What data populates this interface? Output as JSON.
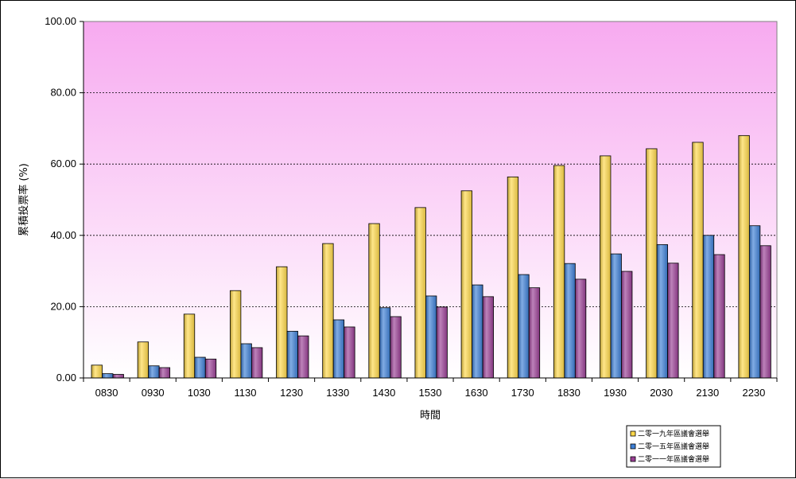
{
  "chart_data": {
    "type": "bar",
    "title": "",
    "xlabel": "時間",
    "ylabel": "累積投票率 (%)",
    "ylim": [
      0,
      100
    ],
    "yticks": [
      "0.00",
      "20.00",
      "40.00",
      "60.00",
      "80.00",
      "100.00"
    ],
    "grid": true,
    "legend_position": "bottom-right",
    "categories": [
      "0830",
      "0930",
      "1030",
      "1130",
      "1230",
      "1330",
      "1430",
      "1530",
      "1630",
      "1730",
      "1830",
      "1930",
      "2030",
      "2130",
      "2230"
    ],
    "series": [
      {
        "name": "二零一九年區議會選舉",
        "color": "#ffd84a",
        "values": [
          3.6,
          10.1,
          17.9,
          24.5,
          31.2,
          37.7,
          43.3,
          47.8,
          52.5,
          56.4,
          59.6,
          62.3,
          64.3,
          66.1,
          68.0
        ]
      },
      {
        "name": "二零一五年區議會選舉",
        "color": "#3d7fd6",
        "values": [
          1.2,
          3.4,
          5.8,
          9.6,
          13.1,
          16.3,
          19.7,
          23.0,
          26.1,
          29.0,
          32.1,
          34.8,
          37.4,
          40.0,
          42.7
        ]
      },
      {
        "name": "二零一一年區議會選舉",
        "color": "#9a3f95",
        "values": [
          1.0,
          2.9,
          5.3,
          8.5,
          11.8,
          14.3,
          17.2,
          19.9,
          22.8,
          25.3,
          27.7,
          29.9,
          32.2,
          34.6,
          37.1
        ]
      }
    ],
    "colors": {
      "plot_top": "#f7aaf0",
      "plot_bottom": "#ffffff",
      "grid": "#000000"
    }
  }
}
